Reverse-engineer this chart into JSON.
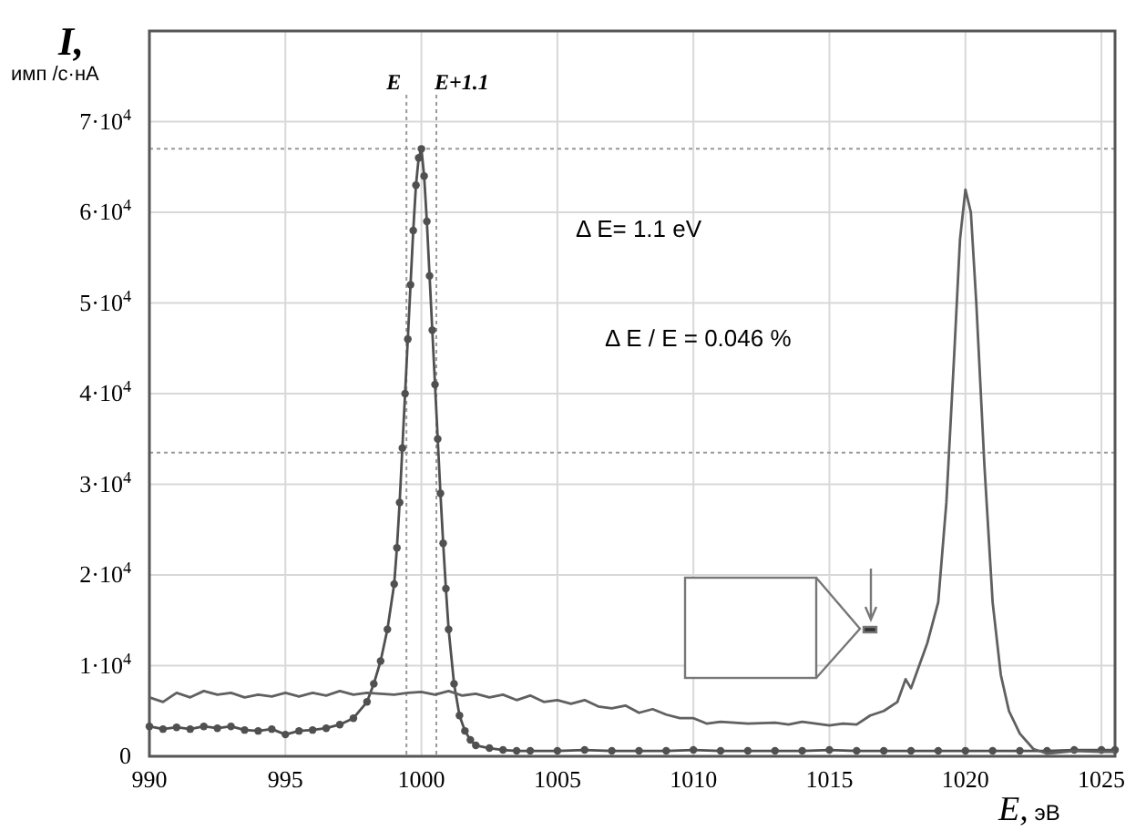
{
  "chart_data": {
    "type": "line",
    "xlabel": "E, эВ",
    "ylabel": "I, имп /с·нА",
    "xlim": [
      990,
      1025.5
    ],
    "xticks": [
      990,
      995,
      1000,
      1005,
      1010,
      1015,
      1020,
      1025
    ],
    "ylim": [
      0,
      80000
    ],
    "yticks": [
      {
        "value": 0,
        "label": "0"
      },
      {
        "value": 10000,
        "label": "1·10$^{4}$"
      },
      {
        "value": 20000,
        "label": "2·10$^{4}$"
      },
      {
        "value": 30000,
        "label": "3·10$^{4}$"
      },
      {
        "value": 40000,
        "label": "4·10$^{4}$"
      },
      {
        "value": 50000,
        "label": "5·10$^{4}$"
      },
      {
        "value": 60000,
        "label": "6·10$^{4}$"
      },
      {
        "value": 70000,
        "label": "7·10$^{4}$"
      }
    ],
    "grid": true,
    "series": [
      {
        "color": "#505050",
        "marker": "circle",
        "x": [
          990,
          990.5,
          991,
          991.5,
          992,
          992.5,
          993,
          993.5,
          994,
          994.5,
          995,
          995.5,
          996,
          996.5,
          997,
          997.5,
          998,
          998.25,
          998.5,
          998.75,
          999,
          999.1,
          999.2,
          999.3,
          999.4,
          999.5,
          999.6,
          999.7,
          999.8,
          999.9,
          1000,
          1000.1,
          1000.2,
          1000.3,
          1000.4,
          1000.5,
          1000.6,
          1000.7,
          1000.8,
          1000.9,
          1001,
          1001.2,
          1001.4,
          1001.6,
          1001.8,
          1002,
          1002.5,
          1003,
          1003.5,
          1004,
          1005,
          1006,
          1007,
          1008,
          1009,
          1010,
          1011,
          1012,
          1013,
          1014,
          1015,
          1016,
          1017,
          1018,
          1019,
          1020,
          1021,
          1022,
          1023,
          1024,
          1025,
          1025.5
        ],
        "values": [
          3300,
          3000,
          3200,
          3000,
          3300,
          3100,
          3300,
          2900,
          2800,
          3000,
          2400,
          2800,
          2900,
          3100,
          3500,
          4200,
          6000,
          8000,
          10500,
          14000,
          19000,
          23000,
          28000,
          34000,
          40000,
          46000,
          52000,
          58000,
          63000,
          66000,
          67000,
          64000,
          59000,
          53000,
          47000,
          41000,
          35000,
          29000,
          23500,
          18500,
          14000,
          8000,
          4500,
          2800,
          1800,
          1200,
          900,
          700,
          600,
          600,
          600,
          700,
          600,
          600,
          600,
          700,
          600,
          600,
          600,
          600,
          700,
          600,
          600,
          600,
          600,
          600,
          600,
          600,
          600,
          700,
          700,
          700
        ]
      },
      {
        "color": "#606060",
        "marker": "none",
        "x": [
          990,
          990.5,
          991,
          991.5,
          992,
          992.5,
          993,
          993.5,
          994,
          994.5,
          995,
          995.5,
          996,
          996.5,
          997,
          997.5,
          998,
          998.5,
          999,
          999.5,
          1000,
          1000.5,
          1001,
          1001.5,
          1002,
          1002.5,
          1003,
          1003.5,
          1004,
          1004.5,
          1005,
          1005.5,
          1006,
          1006.5,
          1007,
          1007.5,
          1008,
          1008.5,
          1009,
          1009.5,
          1010,
          1010.5,
          1011,
          1012,
          1013,
          1013.5,
          1014,
          1015,
          1015.5,
          1016,
          1016.5,
          1017,
          1017.5,
          1017.8,
          1018,
          1018.3,
          1018.6,
          1019,
          1019.3,
          1019.6,
          1019.8,
          1020,
          1020.2,
          1020.4,
          1020.7,
          1021,
          1021.3,
          1021.6,
          1022,
          1022.5,
          1023,
          1024,
          1025,
          1025.5
        ],
        "values": [
          6500,
          6000,
          7000,
          6500,
          7200,
          6800,
          7000,
          6500,
          6800,
          6600,
          7000,
          6600,
          7000,
          6700,
          7200,
          6800,
          7000,
          6900,
          6800,
          7000,
          7100,
          6800,
          7200,
          6700,
          6900,
          6500,
          6800,
          6200,
          6700,
          6000,
          6200,
          5800,
          6200,
          5500,
          5300,
          5600,
          4800,
          5200,
          4600,
          4200,
          4200,
          3600,
          3800,
          3600,
          3700,
          3500,
          3800,
          3400,
          3600,
          3500,
          4500,
          5000,
          6000,
          8500,
          7500,
          10000,
          12500,
          17000,
          28000,
          45000,
          57000,
          62500,
          60000,
          50000,
          32000,
          17000,
          9000,
          5000,
          2500,
          800,
          300,
          600,
          500,
          500
        ]
      }
    ],
    "ref_lines": [
      {
        "axis": "x",
        "value": 999.45,
        "label": "E",
        "color": "#999999",
        "line_style": "dotted"
      },
      {
        "axis": "x",
        "value": 1000.55,
        "label": "E+1.1",
        "color": "#999999",
        "line_style": "dotted"
      },
      {
        "axis": "y",
        "value": 67000,
        "color": "#999999",
        "line_style": "dotted"
      },
      {
        "axis": "y",
        "value": 33500,
        "color": "#999999",
        "line_style": "dotted"
      }
    ],
    "annotations": [
      "Δ E= 1.1 eV",
      "Δ E / E = 0.046 %"
    ]
  }
}
